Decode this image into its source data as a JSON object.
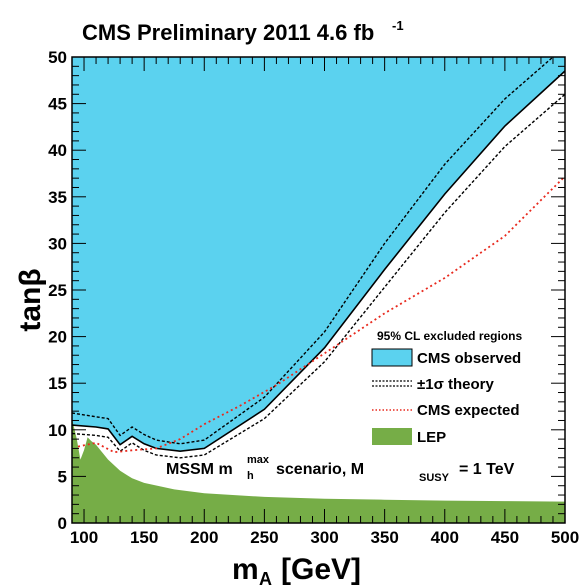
{
  "chart_data": {
    "type": "area",
    "title": "CMS Preliminary 2011 4.6 fb",
    "title_superscript": "-1",
    "xlabel": "m",
    "xlabel_sub": "A",
    "xlabel_unit": "[GeV]",
    "ylabel": "tanβ",
    "xlim": [
      90,
      500
    ],
    "ylim": [
      0,
      50
    ],
    "x_ticks": [
      100,
      150,
      200,
      250,
      300,
      350,
      400,
      450,
      500
    ],
    "y_ticks": [
      0,
      5,
      10,
      15,
      20,
      25,
      30,
      35,
      40,
      45,
      50
    ],
    "legend_header": "95% CL excluded regions",
    "legend_placement": "bottom-right",
    "scenario": {
      "prefix": "MSSM m",
      "m_sub": "h",
      "m_sup": "max",
      "middle": "scenario, M",
      "msusy_sub": "SUSY",
      "suffix": "= 1 TeV"
    },
    "colors": {
      "observed_fill": "#5bd2ef",
      "lep_fill": "#76ad47",
      "expected_line": "#e8291d",
      "theory_line": "#000000"
    },
    "series": [
      {
        "name": "CMS observed",
        "style": "filled",
        "x": [
          90,
          110,
          120,
          130,
          140,
          150,
          160,
          180,
          200,
          250,
          300,
          350,
          400,
          450,
          500
        ],
        "y": [
          10.5,
          10.3,
          10.1,
          8.4,
          9.3,
          8.5,
          8.0,
          7.7,
          8.0,
          12.2,
          18.8,
          27.2,
          35.3,
          42.6,
          48.5
        ]
      },
      {
        "name": "±1σ theory",
        "style": "dashed",
        "upper": {
          "x": [
            90,
            110,
            120,
            130,
            140,
            150,
            160,
            180,
            200,
            250,
            300,
            350,
            400,
            450,
            490
          ],
          "y": [
            11.8,
            11.4,
            11.2,
            9.4,
            10.3,
            9.5,
            8.9,
            8.5,
            8.9,
            13.5,
            20.5,
            30.0,
            38.5,
            45.5,
            50.0
          ]
        },
        "lower": {
          "x": [
            90,
            110,
            120,
            130,
            140,
            150,
            160,
            180,
            200,
            250,
            300,
            350,
            400,
            450,
            500
          ],
          "y": [
            9.6,
            9.4,
            9.2,
            7.7,
            8.6,
            7.8,
            7.3,
            7.0,
            7.3,
            11.2,
            17.3,
            25.3,
            33.3,
            40.4,
            46.0
          ]
        }
      },
      {
        "name": "CMS expected",
        "style": "dotted",
        "x": [
          95,
          110,
          125,
          140,
          160,
          180,
          200,
          230,
          260,
          300,
          350,
          400,
          450,
          500
        ],
        "y": [
          8.2,
          8.6,
          7.6,
          7.8,
          8.0,
          9.0,
          10.6,
          12.6,
          14.8,
          18.2,
          22.5,
          26.3,
          30.8,
          37.2
        ]
      },
      {
        "name": "LEP",
        "style": "filled",
        "x": [
          90,
          94,
          97,
          100,
          103,
          106,
          110,
          115,
          120,
          130,
          140,
          150,
          175,
          200,
          250,
          300,
          350,
          400,
          450,
          500
        ],
        "y": [
          11.2,
          9.0,
          6.8,
          7.8,
          9.2,
          8.8,
          8.4,
          7.6,
          6.8,
          5.6,
          4.8,
          4.3,
          3.6,
          3.2,
          2.8,
          2.6,
          2.5,
          2.4,
          2.35,
          2.3
        ]
      }
    ]
  }
}
